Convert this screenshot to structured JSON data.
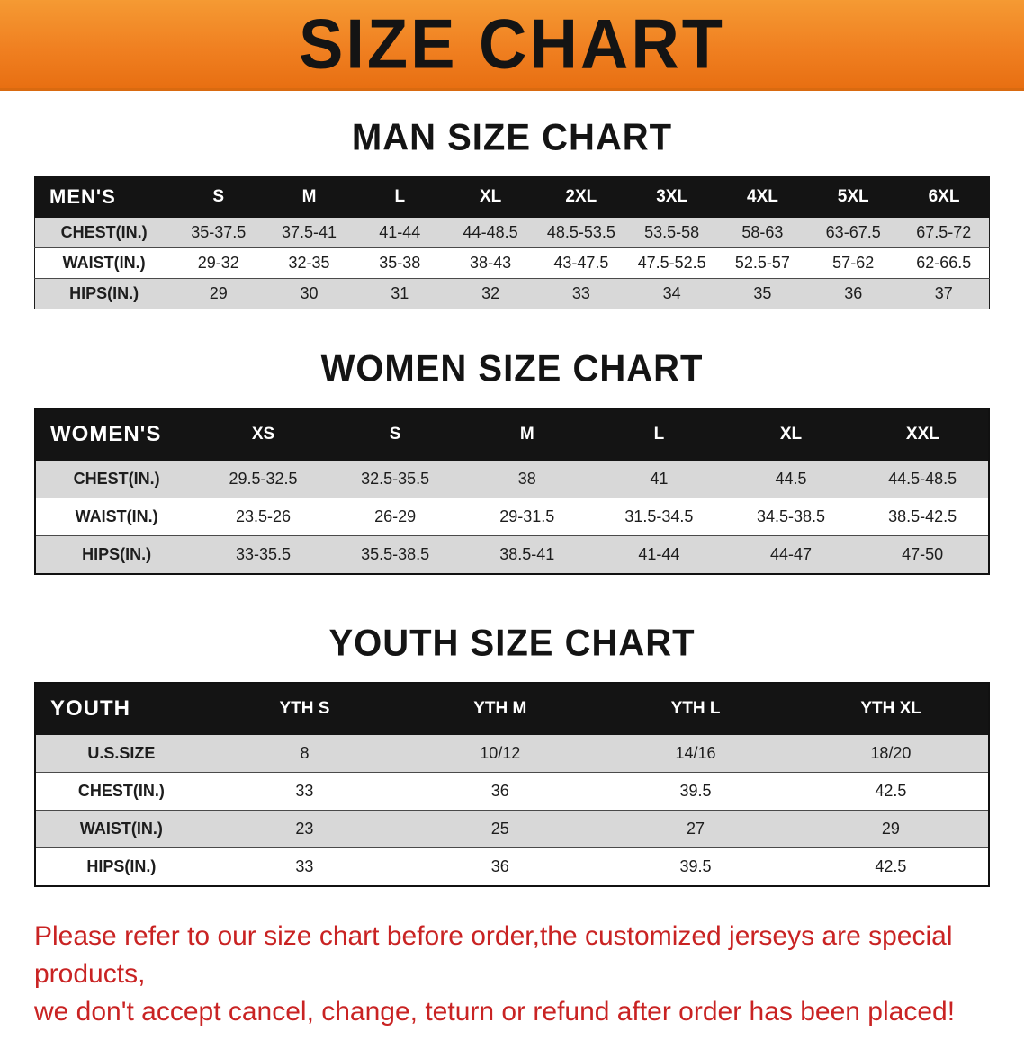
{
  "banner": {
    "title": "SIZE CHART"
  },
  "colors": {
    "banner_bg": "#f08021",
    "table_header_bg": "#141414",
    "row_shade": "#d8d8d8",
    "disclaimer_red": "#c92323"
  },
  "chart_data": [
    {
      "type": "table",
      "title": "MAN SIZE CHART",
      "header": [
        "MEN'S",
        "S",
        "M",
        "L",
        "XL",
        "2XL",
        "3XL",
        "4XL",
        "5XL",
        "6XL"
      ],
      "rows": [
        [
          "CHEST(IN.)",
          "35-37.5",
          "37.5-41",
          "41-44",
          "44-48.5",
          "48.5-53.5",
          "53.5-58",
          "58-63",
          "63-67.5",
          "67.5-72"
        ],
        [
          "WAIST(IN.)",
          "29-32",
          "32-35",
          "35-38",
          "38-43",
          "43-47.5",
          "47.5-52.5",
          "52.5-57",
          "57-62",
          "62-66.5"
        ],
        [
          "HIPS(IN.)",
          "29",
          "30",
          "31",
          "32",
          "33",
          "34",
          "35",
          "36",
          "37"
        ]
      ]
    },
    {
      "type": "table",
      "title": "WOMEN SIZE CHART",
      "header": [
        "WOMEN'S",
        "XS",
        "S",
        "M",
        "L",
        "XL",
        "XXL"
      ],
      "rows": [
        [
          "CHEST(IN.)",
          "29.5-32.5",
          "32.5-35.5",
          "38",
          "41",
          "44.5",
          "44.5-48.5"
        ],
        [
          "WAIST(IN.)",
          "23.5-26",
          "26-29",
          "29-31.5",
          "31.5-34.5",
          "34.5-38.5",
          "38.5-42.5"
        ],
        [
          "HIPS(IN.)",
          "33-35.5",
          "35.5-38.5",
          "38.5-41",
          "41-44",
          "44-47",
          "47-50"
        ]
      ]
    },
    {
      "type": "table",
      "title": "YOUTH SIZE CHART",
      "header": [
        "YOUTH",
        "YTH S",
        "YTH M",
        "YTH L",
        "YTH XL"
      ],
      "rows": [
        [
          "U.S.SIZE",
          "8",
          "10/12",
          "14/16",
          "18/20"
        ],
        [
          "CHEST(IN.)",
          "33",
          "36",
          "39.5",
          "42.5"
        ],
        [
          "WAIST(IN.)",
          "23",
          "25",
          "27",
          "29"
        ],
        [
          "HIPS(IN.)",
          "33",
          "36",
          "39.5",
          "42.5"
        ]
      ]
    }
  ],
  "disclaimer": {
    "line1": "Please refer to our size chart before order,the customized jerseys are special products,",
    "line2": "we don't accept cancel, change, teturn or refund after order has been placed!"
  }
}
